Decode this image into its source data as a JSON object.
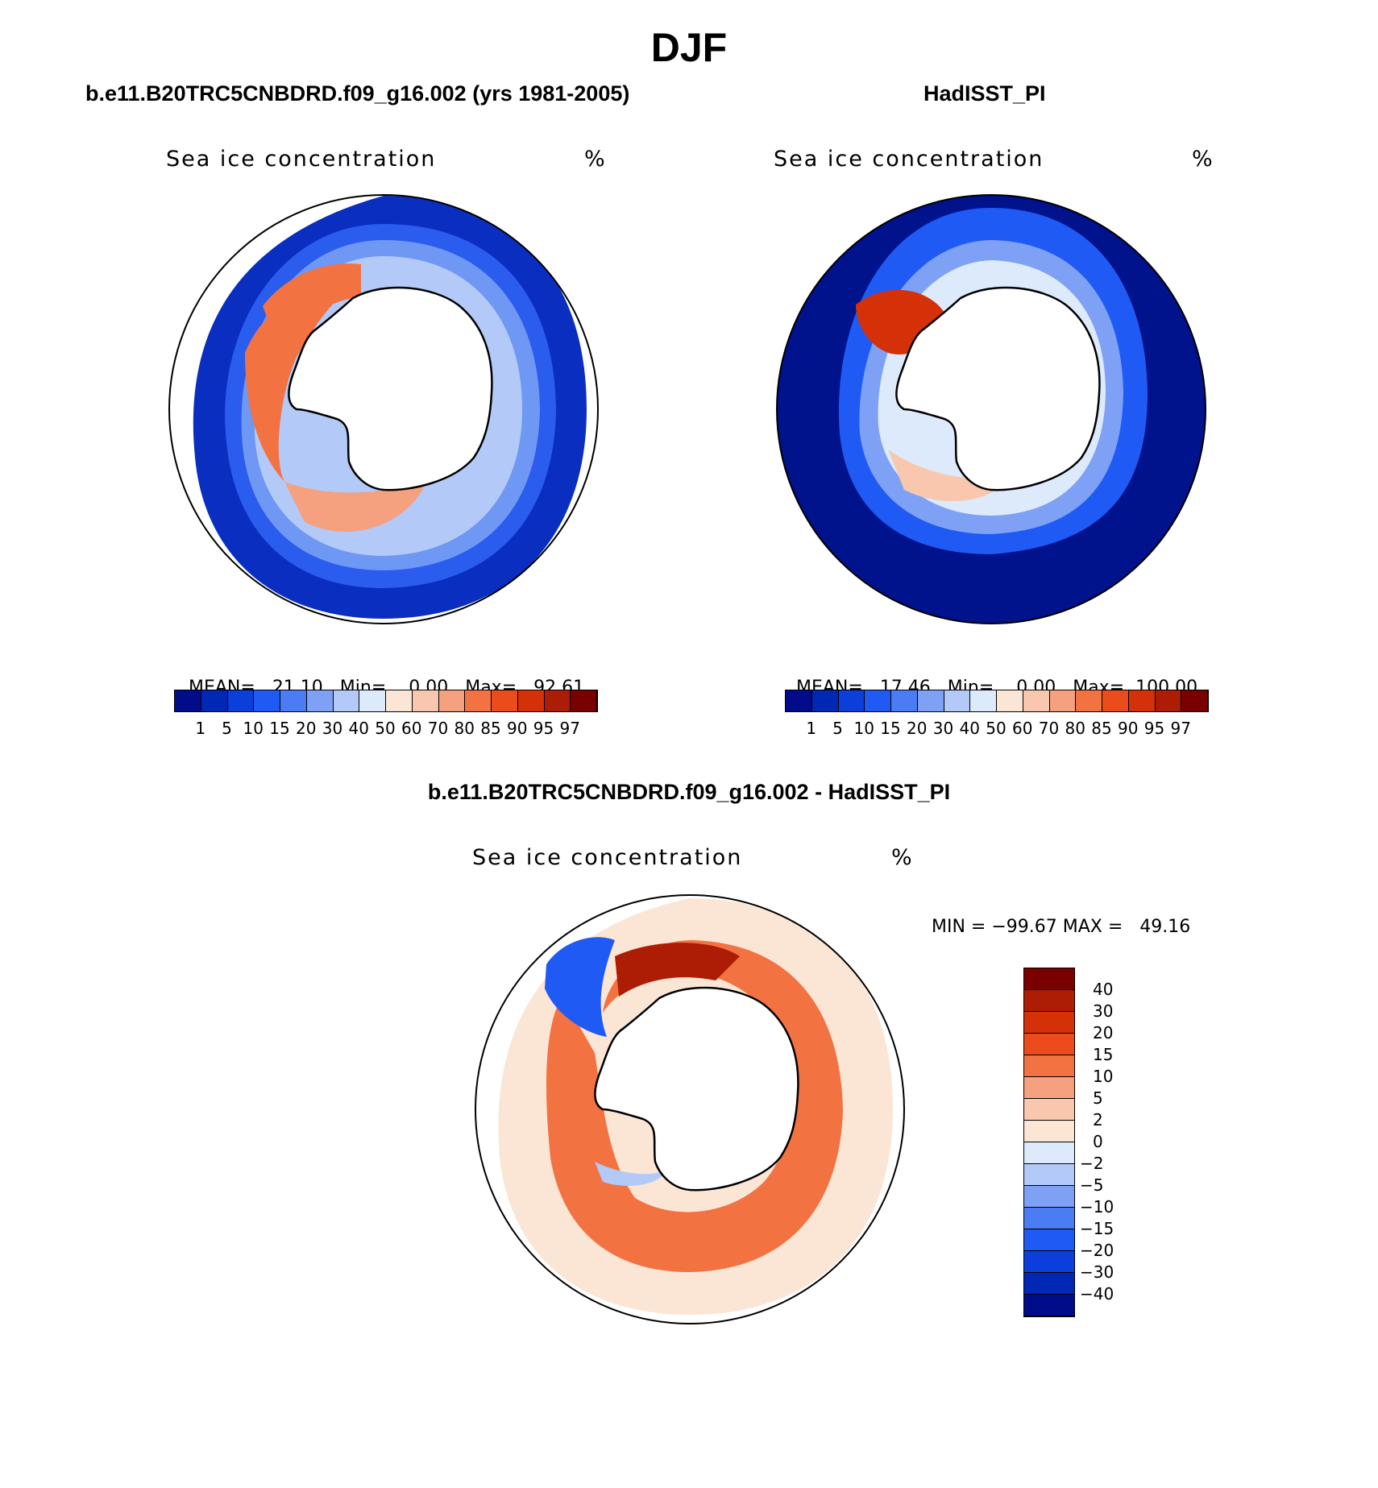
{
  "figure": {
    "title": "DJF"
  },
  "panels": [
    {
      "title": "b.e11.B20TRC5CNBDRD.f09_g16.002 (yrs 1981-2005)",
      "variable": "Sea ice concentration",
      "units": "%",
      "mean_label": "MEAN=",
      "mean": "21.10",
      "min_label": "Min=",
      "min": "0.00",
      "max_label": "Max=",
      "max": "92.61"
    },
    {
      "title": "HadISST_PI",
      "variable": "Sea ice concentration",
      "units": "%",
      "mean_label": "MEAN=",
      "mean": "17.46",
      "min_label": "Min=",
      "min": "0.00",
      "max_label": "Max=",
      "max": "100.00"
    },
    {
      "title": "b.e11.B20TRC5CNBDRD.f09_g16.002 - HadISST_PI",
      "variable": "Sea ice concentration",
      "units": "%",
      "minmax_text": "MIN = −99.67 MAX =   49.16"
    }
  ],
  "colorbar_abs": {
    "ticks": [
      "1",
      "5",
      "10",
      "15",
      "20",
      "30",
      "40",
      "50",
      "60",
      "70",
      "80",
      "85",
      "90",
      "95",
      "97"
    ],
    "colors": [
      "#000c8a",
      "#0028b4",
      "#0a3fdc",
      "#1f5af5",
      "#4a7cf3",
      "#7ea1f5",
      "#b3c9f7",
      "#ddeafb",
      "#fbe6d6",
      "#f8c7ad",
      "#f5a07f",
      "#f27242",
      "#ec4b1b",
      "#d53108",
      "#ad1c04",
      "#7a0000"
    ]
  },
  "colorbar_diff": {
    "ticks": [
      "40",
      "30",
      "20",
      "15",
      "10",
      "5",
      "2",
      "0",
      "−2",
      "−5",
      "−10",
      "−15",
      "−20",
      "−30",
      "−40"
    ],
    "colors": [
      "#7a0000",
      "#ad1c04",
      "#d53108",
      "#ec4b1b",
      "#f27242",
      "#f5a07f",
      "#f8c7ad",
      "#fbe6d6",
      "#ddeafb",
      "#b3c9f7",
      "#7ea1f5",
      "#4a7cf3",
      "#1f5af5",
      "#0a3fdc",
      "#0028b4",
      "#000c8a"
    ]
  }
}
